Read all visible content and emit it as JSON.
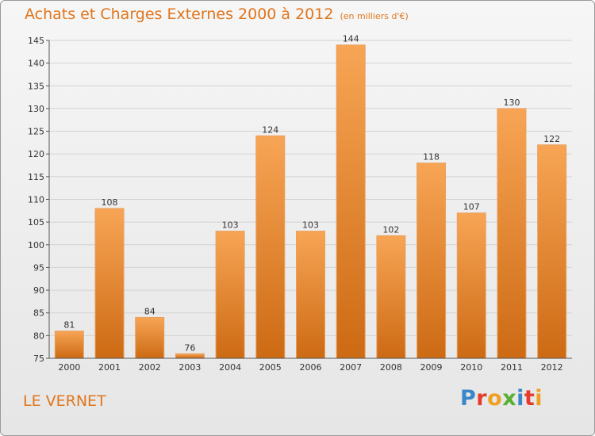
{
  "header": {
    "title": "Achats et Charges Externes 2000 à 2012",
    "subtitle": "(en milliers d'€)"
  },
  "footer": {
    "place": "LE VERNET",
    "logo_text": "Proxiti"
  },
  "colors": {
    "accent": "#e0751c",
    "bar_top": "#f7a555",
    "bar_bottom": "#cd6a14"
  },
  "chart_data": {
    "type": "bar",
    "title": "Achats et Charges Externes 2000 à 2012",
    "subtitle": "(en milliers d'€)",
    "xlabel": "",
    "ylabel": "",
    "categories": [
      "2000",
      "2001",
      "2002",
      "2003",
      "2004",
      "2005",
      "2006",
      "2007",
      "2008",
      "2009",
      "2010",
      "2011",
      "2012"
    ],
    "values": [
      81,
      108,
      84,
      76,
      103,
      124,
      103,
      144,
      102,
      118,
      107,
      130,
      122
    ],
    "ylim": [
      75,
      145
    ],
    "yticks": [
      75,
      80,
      85,
      90,
      95,
      100,
      105,
      110,
      115,
      120,
      125,
      130,
      135,
      140,
      145
    ],
    "grid": true,
    "legend": "none"
  }
}
